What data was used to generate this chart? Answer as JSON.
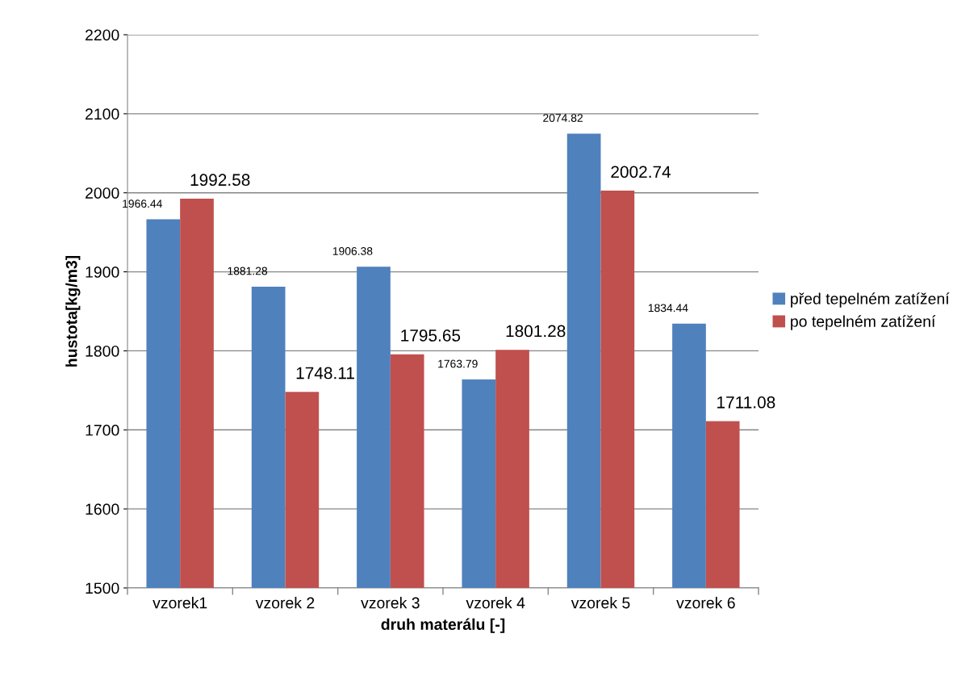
{
  "chart_data": {
    "type": "bar",
    "xlabel": "druh materálu [-]",
    "ylabel": "hustota[kg/m3]",
    "categories": [
      "vzorek1",
      "vzorek 2",
      "vzorek 3",
      "vzorek 4",
      "vzorek 5",
      "vzorek 6"
    ],
    "series": [
      {
        "name": "před tepelném zatížení",
        "color": "#4f81bd",
        "values": [
          1966.44,
          1881.28,
          1906.38,
          1763.79,
          2074.82,
          1834.44
        ]
      },
      {
        "name": "po tepelném zatížení",
        "color": "#c0504d",
        "values": [
          1992.58,
          1748.11,
          1795.65,
          1801.28,
          2002.74,
          1711.08
        ]
      }
    ],
    "ylim": [
      1500,
      2200
    ],
    "yticks": [
      1500,
      1600,
      1700,
      1800,
      1900,
      2000,
      2100,
      2200
    ],
    "grid": "y",
    "legend": "right",
    "data_labels": true
  }
}
